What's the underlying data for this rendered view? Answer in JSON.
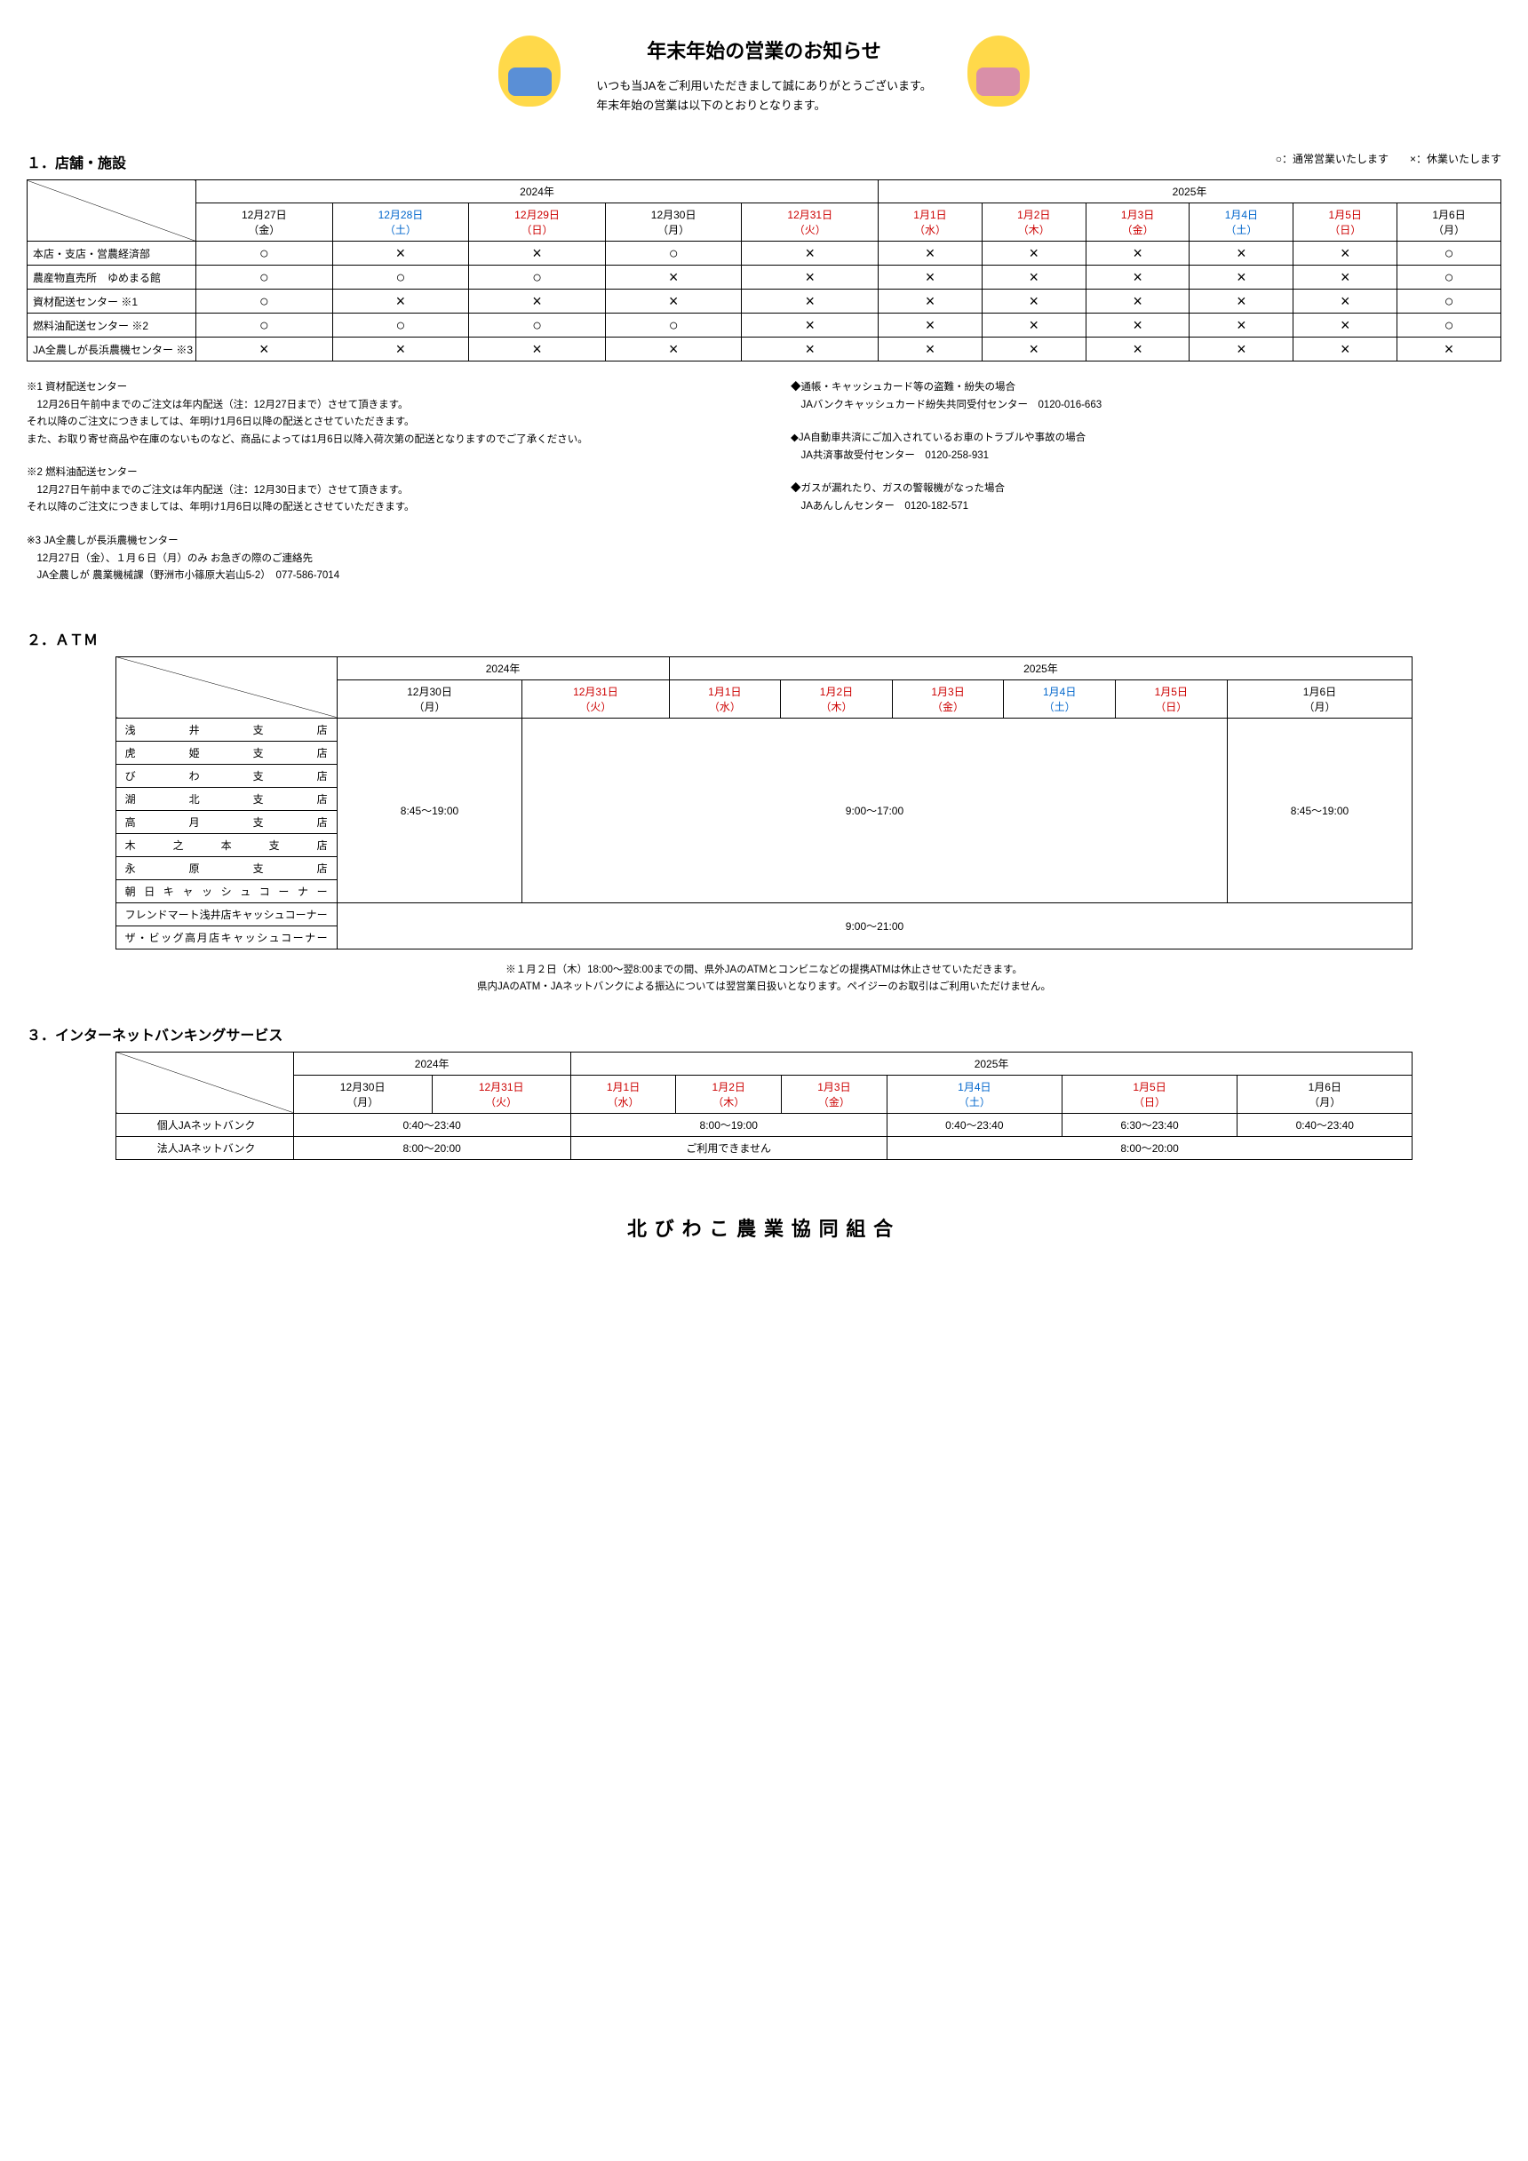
{
  "header": {
    "title": "年末年始の営業のお知らせ",
    "intro1": "いつも当JAをご利用いただきまして誠にありがとうございます。",
    "intro2": "年末年始の営業は以下のとおりとなります。"
  },
  "section1": {
    "heading": "１．店舗・施設",
    "legend": "○：通常営業いたします　　×：休業いたします",
    "yearA": "2024年",
    "yearB": "2025年",
    "dates": [
      {
        "d": "12月27日",
        "w": "（金）",
        "cls": ""
      },
      {
        "d": "12月28日",
        "w": "（土）",
        "cls": "c-blue"
      },
      {
        "d": "12月29日",
        "w": "（日）",
        "cls": "c-red"
      },
      {
        "d": "12月30日",
        "w": "（月）",
        "cls": ""
      },
      {
        "d": "12月31日",
        "w": "（火）",
        "cls": "c-red"
      },
      {
        "d": "1月1日",
        "w": "（水）",
        "cls": "c-red"
      },
      {
        "d": "1月2日",
        "w": "（木）",
        "cls": "c-red"
      },
      {
        "d": "1月3日",
        "w": "（金）",
        "cls": "c-red"
      },
      {
        "d": "1月4日",
        "w": "（土）",
        "cls": "c-blue"
      },
      {
        "d": "1月5日",
        "w": "（日）",
        "cls": "c-red"
      },
      {
        "d": "1月6日",
        "w": "（月）",
        "cls": ""
      }
    ],
    "rows": [
      {
        "label": "本店・支店・営農経済部",
        "m": [
          "○",
          "×",
          "×",
          "○",
          "×",
          "×",
          "×",
          "×",
          "×",
          "×",
          "○"
        ]
      },
      {
        "label": "農産物直売所　ゆめまる館",
        "m": [
          "○",
          "○",
          "○",
          "×",
          "×",
          "×",
          "×",
          "×",
          "×",
          "×",
          "○"
        ]
      },
      {
        "label": "資材配送センター ※1",
        "m": [
          "○",
          "×",
          "×",
          "×",
          "×",
          "×",
          "×",
          "×",
          "×",
          "×",
          "○"
        ]
      },
      {
        "label": "燃料油配送センター ※2",
        "m": [
          "○",
          "○",
          "○",
          "○",
          "×",
          "×",
          "×",
          "×",
          "×",
          "×",
          "○"
        ]
      },
      {
        "label": "JA全農しが長浜農機センター ※3",
        "m": [
          "×",
          "×",
          "×",
          "×",
          "×",
          "×",
          "×",
          "×",
          "×",
          "×",
          "×"
        ]
      }
    ],
    "notesL": {
      "n1h": "※1 資材配送センター",
      "n1a": "　12月26日午前中までのご注文は年内配送（注：12月27日まで）させて頂きます。",
      "n1b": "それ以降のご注文につきましては、年明け1月6日以降の配送とさせていただきます。",
      "n1c": "また、お取り寄せ商品や在庫のないものなど、商品によっては1月6日以降入荷次第の配送となりますのでご了承ください。",
      "n2h": "※2 燃料油配送センター",
      "n2a": "　12月27日午前中までのご注文は年内配送（注：12月30日まで）させて頂きます。",
      "n2b": "それ以降のご注文につきましては、年明け1月6日以降の配送とさせていただきます。",
      "n3h": "※3 JA全農しが長浜農機センター",
      "n3a": "　12月27日（金）、１月６日（月）のみ お急ぎの際のご連絡先",
      "n3b": "　JA全農しが 農業機械課（野洲市小篠原大岩山5-2）　077-586-7014"
    },
    "notesR": {
      "r1h": "◆通帳・キャッシュカード等の盗難・紛失の場合",
      "r1a": "　JAバンクキャッシュカード紛失共同受付センター　0120-016-663",
      "r2h": "◆JA自動車共済にご加入されているお車のトラブルや事故の場合",
      "r2a": "　JA共済事故受付センター　0120-258-931",
      "r3h": "◆ガスが漏れたり、ガスの警報機がなった場合",
      "r3a": "　JAあんしんセンター　0120-182-571"
    }
  },
  "section2": {
    "heading": "２．ＡＴＭ",
    "yearA": "2024年",
    "yearB": "2025年",
    "dates": [
      {
        "d": "12月30日",
        "w": "（月）",
        "cls": ""
      },
      {
        "d": "12月31日",
        "w": "（火）",
        "cls": "c-red"
      },
      {
        "d": "1月1日",
        "w": "（水）",
        "cls": "c-red"
      },
      {
        "d": "1月2日",
        "w": "（木）",
        "cls": "c-red"
      },
      {
        "d": "1月3日",
        "w": "（金）",
        "cls": "c-red"
      },
      {
        "d": "1月4日",
        "w": "（土）",
        "cls": "c-blue"
      },
      {
        "d": "1月5日",
        "w": "（日）",
        "cls": "c-red"
      },
      {
        "d": "1月6日",
        "w": "（月）",
        "cls": ""
      }
    ],
    "branches": [
      "浅井支店",
      "虎姫支店",
      "びわ支店",
      "湖北支店",
      "高月支店",
      "木之本支店",
      "永原支店",
      "朝日キャッシュコーナー"
    ],
    "extra": [
      "フレンドマート浅井店キャッシュコーナー",
      "ザ・ビッグ高月店キャッシュコーナー"
    ],
    "t1": "8:45～19:00",
    "t2": "9:00～17:00",
    "t3": "8:45～19:00",
    "t4": "9:00～21:00",
    "note1": "※１月２日（木）18:00～翌8:00までの間、県外JAのATMとコンビニなどの提携ATMは休止させていただきます。",
    "note2": "県内JAのATM・JAネットバンクによる振込については翌営業日扱いとなります。ペイジーのお取引はご利用いただけません。"
  },
  "section3": {
    "heading": "３．インターネットバンキングサービス",
    "yearA": "2024年",
    "yearB": "2025年",
    "dates": [
      {
        "d": "12月30日",
        "w": "（月）",
        "cls": ""
      },
      {
        "d": "12月31日",
        "w": "（火）",
        "cls": "c-red"
      },
      {
        "d": "1月1日",
        "w": "（水）",
        "cls": "c-red"
      },
      {
        "d": "1月2日",
        "w": "（木）",
        "cls": "c-red"
      },
      {
        "d": "1月3日",
        "w": "（金）",
        "cls": "c-red"
      },
      {
        "d": "1月4日",
        "w": "（土）",
        "cls": "c-blue"
      },
      {
        "d": "1月5日",
        "w": "（日）",
        "cls": "c-red"
      },
      {
        "d": "1月6日",
        "w": "（月）",
        "cls": ""
      }
    ],
    "rowP": {
      "label": "個人JAネットバンク",
      "a": "0:40～23:40",
      "b": "8:00～19:00",
      "c": "0:40～23:40",
      "d": "6:30～23:40",
      "e": "0:40～23:40"
    },
    "rowC": {
      "label": "法人JAネットバンク",
      "a": "8:00～20:00",
      "b": "ご利用できません",
      "c": "8:00～20:00"
    }
  },
  "footer": "北びわこ農業協同組合"
}
